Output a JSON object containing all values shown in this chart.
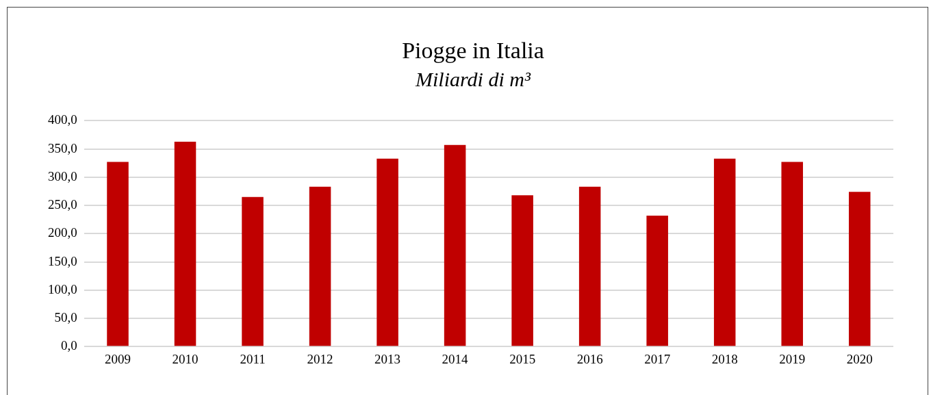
{
  "chart_data": {
    "type": "bar",
    "title": "Piogge in Italia",
    "subtitle": "Miliardi di m³",
    "categories": [
      "2009",
      "2010",
      "2011",
      "2012",
      "2013",
      "2014",
      "2015",
      "2016",
      "2017",
      "2018",
      "2019",
      "2020"
    ],
    "values": [
      327,
      363,
      265,
      283,
      333,
      357,
      268,
      283,
      232,
      333,
      327,
      274
    ],
    "color": "#c00000",
    "ylim": [
      0,
      400
    ],
    "yticks": [
      {
        "value": 0,
        "label": "0,0"
      },
      {
        "value": 50,
        "label": "50,0"
      },
      {
        "value": 100,
        "label": "100,0"
      },
      {
        "value": 150,
        "label": "150,0"
      },
      {
        "value": 200,
        "label": "200,0"
      },
      {
        "value": 250,
        "label": "250,0"
      },
      {
        "value": 300,
        "label": "300,0"
      },
      {
        "value": 350,
        "label": "350,0"
      },
      {
        "value": 400,
        "label": "400,0"
      }
    ],
    "grid": "y",
    "legend": false
  }
}
